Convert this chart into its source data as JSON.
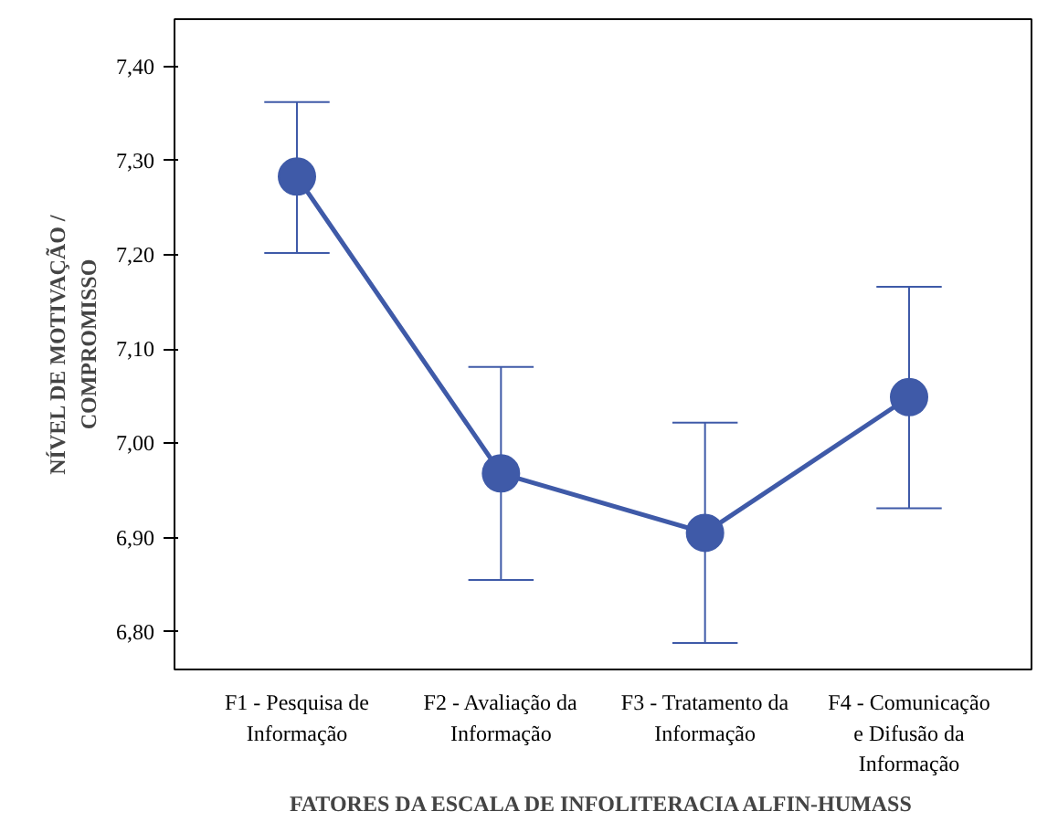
{
  "chart_data": {
    "type": "line",
    "categories": [
      "F1 - Pesquisa de\nInformação",
      "F2 - Avaliação da\nInformação",
      "F3 - Tratamento da\nInformação",
      "F4 - Comunicação\ne Difusão da\nInformação"
    ],
    "values": [
      7.283,
      6.968,
      6.905,
      7.049
    ],
    "errors": [
      [
        7.202,
        7.362
      ],
      [
        6.855,
        7.081
      ],
      [
        6.788,
        7.022
      ],
      [
        6.931,
        7.166
      ]
    ],
    "color": "#3f5aa8",
    "marker": "circle",
    "ylim": [
      6.76,
      7.45
    ],
    "yticks": [
      {
        "value": 6.8,
        "label": "6,80"
      },
      {
        "value": 6.9,
        "label": "6,90"
      },
      {
        "value": 7.0,
        "label": "7,00"
      },
      {
        "value": 7.1,
        "label": "7,10"
      },
      {
        "value": 7.2,
        "label": "7,20"
      },
      {
        "value": 7.3,
        "label": "7,30"
      },
      {
        "value": 7.4,
        "label": "7,40"
      }
    ],
    "xlabel": "FATORES DA ESCALA DE INFOLITERACIA ALFIN-HUMASS",
    "ylabel": "NÍVEL DE MOTIVAÇÃO /\nCOMPROMISSO",
    "grid": false
  }
}
